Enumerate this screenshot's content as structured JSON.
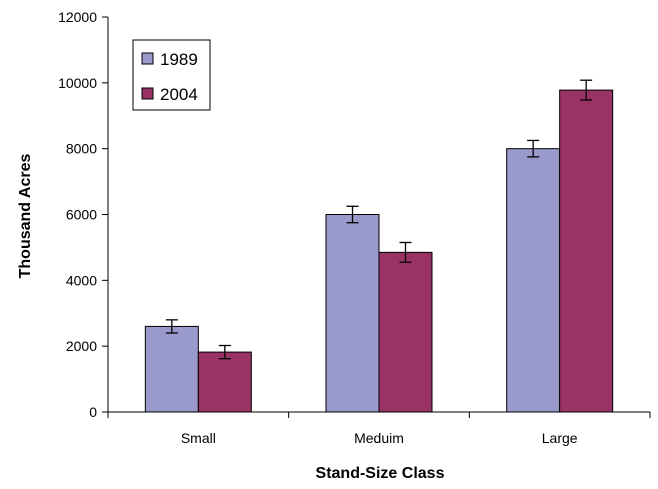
{
  "chart_data": {
    "type": "bar",
    "xlabel": "Stand-Size Class",
    "ylabel": "Thousand Acres",
    "categories": [
      "Small",
      "Meduim",
      "Large"
    ],
    "ylim": [
      0,
      12000
    ],
    "yticks": [
      0,
      2000,
      4000,
      6000,
      8000,
      10000,
      12000
    ],
    "ytick_labels": [
      "0",
      "2000",
      "4000",
      "6000",
      "8000",
      "10000",
      "12000"
    ],
    "grid": false,
    "legend_position": "top-left",
    "series": [
      {
        "name": "1989",
        "color": "#9999cc",
        "values": [
          2600,
          6000,
          8000
        ],
        "errors": [
          200,
          250,
          250
        ]
      },
      {
        "name": "2004",
        "color": "#993366",
        "values": [
          1820,
          4850,
          9780
        ],
        "errors": [
          200,
          300,
          300
        ]
      }
    ]
  }
}
